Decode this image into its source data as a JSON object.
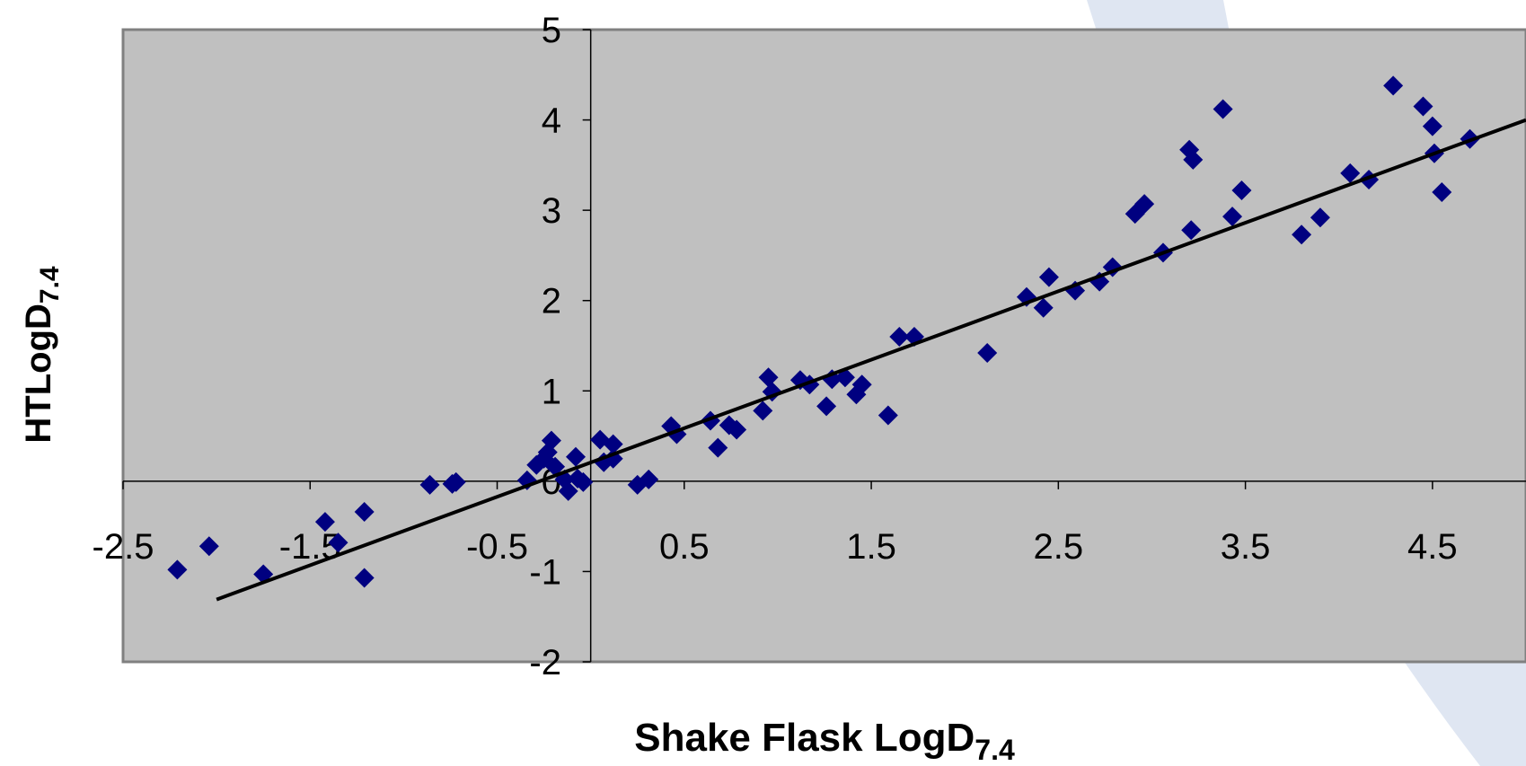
{
  "chart_data": {
    "type": "scatter",
    "title": "",
    "xlabel": "Shake Flask LogD",
    "xlabel_subscript": "7.4",
    "ylabel": "HTLogD",
    "ylabel_subscript": "7.4",
    "xlim": [
      -2.5,
      5.0
    ],
    "ylim": [
      -2,
      5
    ],
    "x_ticks": [
      "-2.5",
      "-1.5",
      "-0.5",
      "0.5",
      "1.5",
      "2.5",
      "3.5",
      "4.5"
    ],
    "y_ticks": [
      "-2",
      "-1",
      "0",
      "1",
      "2",
      "3",
      "4",
      "5"
    ],
    "grid": false,
    "legend": "none",
    "colors": {
      "plot_background": "#c0c0c0",
      "marker": "#000080",
      "trendline": "#000000",
      "decoration": "#dfe6f2"
    },
    "series": [
      {
        "marker": "diamond",
        "points": [
          [
            -2.21,
            -0.98
          ],
          [
            -2.04,
            -0.72
          ],
          [
            -1.75,
            -1.03
          ],
          [
            -1.42,
            -0.45
          ],
          [
            -1.35,
            -0.68
          ],
          [
            -1.21,
            -0.34
          ],
          [
            -1.21,
            -1.07
          ],
          [
            -0.86,
            -0.04
          ],
          [
            -0.74,
            -0.03
          ],
          [
            -0.72,
            -0.01
          ],
          [
            -0.34,
            0.01
          ],
          [
            -0.29,
            0.18
          ],
          [
            -0.25,
            0.25
          ],
          [
            -0.23,
            0.32
          ],
          [
            -0.21,
            0.45
          ],
          [
            -0.19,
            0.16
          ],
          [
            -0.14,
            0.02
          ],
          [
            -0.12,
            -0.11
          ],
          [
            -0.08,
            0.27
          ],
          [
            -0.07,
            0.03
          ],
          [
            -0.04,
            -0.01
          ],
          [
            0.05,
            0.46
          ],
          [
            0.07,
            0.21
          ],
          [
            0.12,
            0.41
          ],
          [
            0.12,
            0.25
          ],
          [
            0.25,
            -0.04
          ],
          [
            0.31,
            0.02
          ],
          [
            0.43,
            0.61
          ],
          [
            0.46,
            0.52
          ],
          [
            0.64,
            0.67
          ],
          [
            0.68,
            0.37
          ],
          [
            0.74,
            0.62
          ],
          [
            0.78,
            0.57
          ],
          [
            0.92,
            0.78
          ],
          [
            0.95,
            1.15
          ],
          [
            0.97,
            0.99
          ],
          [
            1.12,
            1.12
          ],
          [
            1.17,
            1.07
          ],
          [
            1.26,
            0.83
          ],
          [
            1.29,
            1.13
          ],
          [
            1.36,
            1.15
          ],
          [
            1.42,
            0.96
          ],
          [
            1.45,
            1.07
          ],
          [
            1.59,
            0.73
          ],
          [
            1.65,
            1.6
          ],
          [
            1.73,
            1.6
          ],
          [
            2.12,
            1.42
          ],
          [
            2.33,
            2.04
          ],
          [
            2.42,
            1.92
          ],
          [
            2.45,
            2.26
          ],
          [
            2.59,
            2.11
          ],
          [
            2.72,
            2.21
          ],
          [
            2.79,
            2.37
          ],
          [
            2.91,
            2.96
          ],
          [
            2.96,
            3.07
          ],
          [
            3.06,
            2.53
          ],
          [
            3.2,
            3.67
          ],
          [
            3.21,
            2.78
          ],
          [
            3.22,
            3.56
          ],
          [
            3.38,
            4.12
          ],
          [
            3.43,
            2.93
          ],
          [
            3.48,
            3.22
          ],
          [
            3.8,
            2.73
          ],
          [
            3.9,
            2.92
          ],
          [
            4.06,
            3.41
          ],
          [
            4.16,
            3.34
          ],
          [
            4.29,
            4.38
          ],
          [
            4.45,
            4.15
          ],
          [
            4.5,
            3.93
          ],
          [
            4.51,
            3.63
          ],
          [
            4.55,
            3.2
          ],
          [
            4.7,
            3.79
          ]
        ]
      }
    ],
    "trendline": {
      "x": [
        -2.0,
        5.0
      ],
      "y": [
        -1.31,
        4.0
      ]
    }
  }
}
